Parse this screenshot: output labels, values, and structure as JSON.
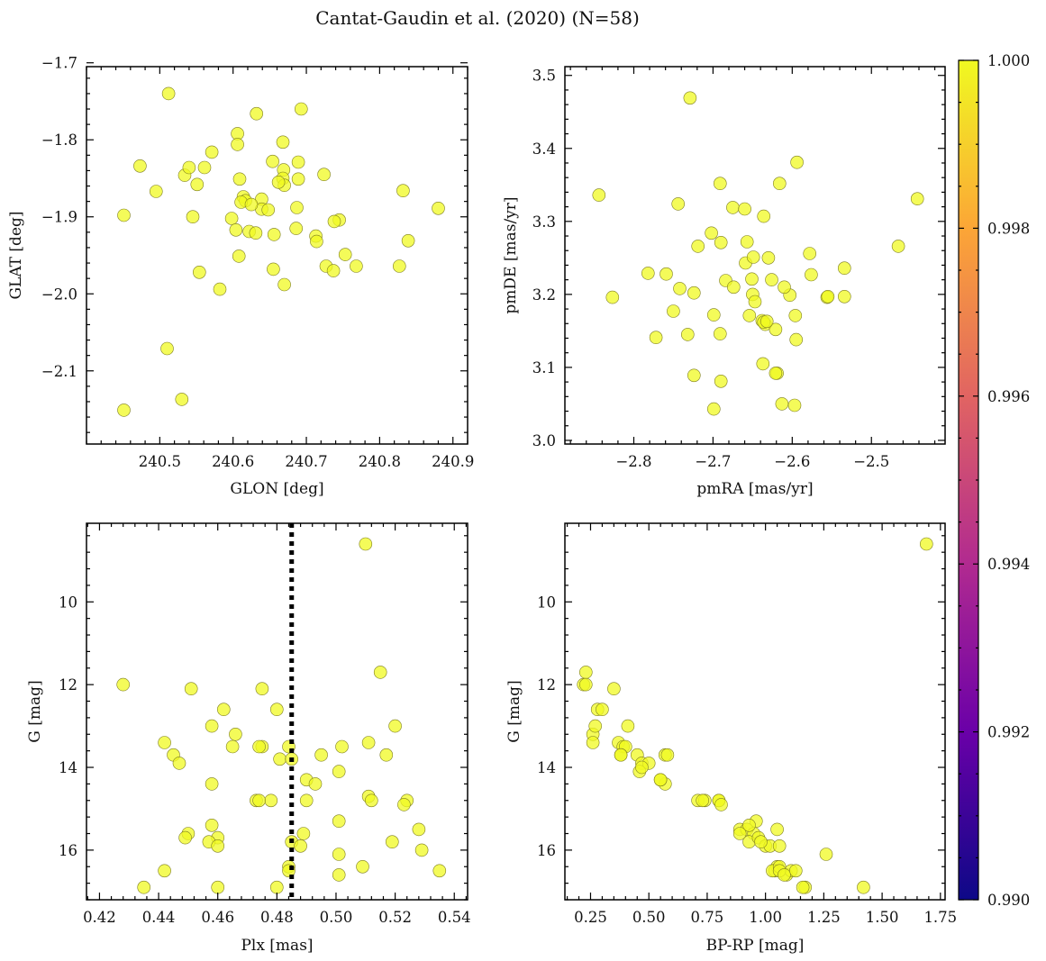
{
  "chart_data": {
    "title": "Cantat-Gaudin et al. (2020) (N=58)",
    "colorbar": {
      "min": 0.99,
      "max": 1.0,
      "tick_labels": [
        "1.000",
        "0.998",
        "0.996",
        "0.994",
        "0.992",
        "0.990"
      ],
      "tick_values": [
        1.0,
        0.998,
        0.996,
        0.994,
        0.992,
        0.99
      ],
      "colormap": "plasma",
      "colors": [
        "#0d0887",
        "#6a00a8",
        "#b12a90",
        "#e16462",
        "#fca636",
        "#f0f921"
      ]
    },
    "marker_color": "#f0f921",
    "panels": [
      {
        "type": "scatter",
        "xlabel": "GLON [deg]",
        "ylabel": "GLAT [deg]",
        "xlim": [
          240.4,
          240.92
        ],
        "ylim": [
          -2.195,
          -1.705
        ],
        "y_inverted": false,
        "xticks": [
          240.5,
          240.6,
          240.7,
          240.8,
          240.9
        ],
        "xtick_labels": [
          "240.5",
          "240.6",
          "240.7",
          "240.8",
          "240.9"
        ],
        "yticks": [
          -1.7,
          -1.8,
          -1.9,
          -2.0,
          -2.1
        ],
        "ytick_labels": [
          "−1.7",
          "−1.8",
          "−1.9",
          "−2.0",
          "−2.1"
        ],
        "x": [
          240.512,
          240.693,
          240.632,
          240.606,
          240.606,
          240.668,
          240.473,
          240.571,
          240.654,
          240.689,
          240.669,
          240.534,
          240.54,
          240.561,
          240.724,
          240.609,
          240.668,
          240.689,
          240.67,
          240.495,
          240.551,
          240.832,
          240.614,
          240.639,
          240.617,
          240.687,
          240.451,
          240.639,
          240.545,
          240.598,
          240.745,
          240.738,
          240.604,
          240.622,
          240.631,
          240.648,
          240.713,
          240.686,
          240.714,
          240.839,
          240.608,
          240.753,
          240.727,
          240.768,
          240.827,
          240.655,
          240.737,
          240.554,
          240.582,
          240.67,
          240.51,
          240.451,
          240.53,
          240.662,
          240.656,
          240.611,
          240.88,
          240.625
        ],
        "y": [
          -1.74,
          -1.76,
          -1.766,
          -1.792,
          -1.806,
          -1.803,
          -1.834,
          -1.816,
          -1.828,
          -1.829,
          -1.839,
          -1.846,
          -1.836,
          -1.836,
          -1.845,
          -1.851,
          -1.85,
          -1.851,
          -1.859,
          -1.867,
          -1.858,
          -1.866,
          -1.874,
          -1.877,
          -1.879,
          -1.888,
          -1.898,
          -1.89,
          -1.9,
          -1.902,
          -1.904,
          -1.906,
          -1.917,
          -1.919,
          -1.921,
          -1.891,
          -1.925,
          -1.915,
          -1.932,
          -1.931,
          -1.951,
          -1.949,
          -1.964,
          -1.964,
          -1.964,
          -1.968,
          -1.97,
          -1.972,
          -1.994,
          -1.988,
          -2.071,
          -2.151,
          -2.137,
          -1.855,
          -1.923,
          -1.881,
          -1.889,
          -1.884
        ]
      },
      {
        "type": "scatter",
        "xlabel": "pmRA [mas/yr]",
        "ylabel": "pmDE [mas/yr]",
        "xlim": [
          -2.887,
          -2.407
        ],
        "ylim": [
          2.995,
          3.512
        ],
        "y_inverted": false,
        "xticks": [
          -2.8,
          -2.7,
          -2.6,
          -2.5
        ],
        "xtick_labels": [
          "−2.8",
          "−2.7",
          "−2.6",
          "−2.5"
        ],
        "yticks": [
          3.0,
          3.1,
          3.2,
          3.3,
          3.4,
          3.5
        ],
        "ytick_labels": [
          "3.0",
          "3.1",
          "3.2",
          "3.3",
          "3.4",
          "3.5"
        ],
        "x": [
          -2.729,
          -2.594,
          -2.616,
          -2.442,
          -2.844,
          -2.744,
          -2.691,
          -2.675,
          -2.66,
          -2.636,
          -2.702,
          -2.657,
          -2.466,
          -2.719,
          -2.578,
          -2.63,
          -2.659,
          -2.782,
          -2.759,
          -2.576,
          -2.534,
          -2.684,
          -2.651,
          -2.674,
          -2.626,
          -2.742,
          -2.724,
          -2.65,
          -2.603,
          -2.827,
          -2.647,
          -2.556,
          -2.555,
          -2.534,
          -2.75,
          -2.638,
          -2.699,
          -2.634,
          -2.636,
          -2.621,
          -2.654,
          -2.596,
          -2.691,
          -2.732,
          -2.772,
          -2.595,
          -2.637,
          -2.619,
          -2.724,
          -2.621,
          -2.69,
          -2.613,
          -2.597,
          -2.699,
          -2.632,
          -2.69,
          -2.649,
          -2.61
        ],
        "y": [
          3.469,
          3.381,
          3.352,
          3.331,
          3.336,
          3.324,
          3.352,
          3.319,
          3.317,
          3.307,
          3.284,
          3.272,
          3.266,
          3.266,
          3.256,
          3.25,
          3.243,
          3.229,
          3.228,
          3.227,
          3.236,
          3.219,
          3.221,
          3.21,
          3.22,
          3.208,
          3.202,
          3.2,
          3.199,
          3.196,
          3.19,
          3.196,
          3.197,
          3.197,
          3.177,
          3.164,
          3.172,
          3.159,
          3.162,
          3.152,
          3.171,
          3.171,
          3.146,
          3.145,
          3.141,
          3.138,
          3.105,
          3.092,
          3.089,
          3.092,
          3.081,
          3.05,
          3.048,
          3.043,
          3.163,
          3.271,
          3.251,
          3.21
        ]
      },
      {
        "type": "scatter",
        "xlabel": "Plx [mas]",
        "ylabel": "G [mag]",
        "xlim": [
          0.4156,
          0.5445
        ],
        "ylim": [
          17.2,
          8.1
        ],
        "y_inverted": true,
        "vline": {
          "x": 0.485,
          "style": "dotted",
          "color": "#000000"
        },
        "xticks": [
          0.42,
          0.44,
          0.46,
          0.48,
          0.5,
          0.52,
          0.54
        ],
        "xtick_labels": [
          "0.42",
          "0.44",
          "0.46",
          "0.48",
          "0.50",
          "0.52",
          "0.54"
        ],
        "yticks": [
          10,
          12,
          14,
          16
        ],
        "ytick_labels": [
          "10",
          "12",
          "14",
          "16"
        ],
        "x": [
          0.51,
          0.515,
          0.428,
          0.451,
          0.475,
          0.462,
          0.52,
          0.48,
          0.442,
          0.511,
          0.466,
          0.458,
          0.502,
          0.484,
          0.475,
          0.517,
          0.445,
          0.495,
          0.49,
          0.481,
          0.447,
          0.458,
          0.501,
          0.493,
          0.511,
          0.49,
          0.485,
          0.512,
          0.473,
          0.478,
          0.524,
          0.523,
          0.501,
          0.528,
          0.458,
          0.45,
          0.449,
          0.46,
          0.457,
          0.46,
          0.519,
          0.485,
          0.488,
          0.501,
          0.529,
          0.484,
          0.509,
          0.442,
          0.535,
          0.501,
          0.48,
          0.435,
          0.46,
          0.474,
          0.465,
          0.474,
          0.484,
          0.489
        ],
        "y": [
          8.6,
          11.7,
          12.0,
          12.1,
          12.1,
          12.6,
          13.0,
          12.6,
          13.4,
          13.4,
          13.2,
          13.0,
          13.5,
          13.5,
          13.5,
          13.7,
          13.7,
          13.7,
          14.3,
          13.8,
          13.9,
          14.4,
          14.1,
          14.4,
          14.7,
          14.8,
          13.8,
          14.8,
          14.8,
          14.8,
          14.8,
          14.9,
          15.3,
          15.5,
          15.4,
          15.6,
          15.7,
          15.7,
          15.8,
          15.9,
          15.8,
          15.8,
          15.9,
          16.1,
          16.0,
          16.4,
          16.4,
          16.5,
          16.5,
          16.6,
          16.9,
          16.9,
          16.9,
          13.5,
          13.5,
          14.8,
          16.5,
          15.6
        ]
      },
      {
        "type": "scatter",
        "xlabel": "BP-RP [mag]",
        "ylabel": "G [mag]",
        "xlim": [
          0.14,
          1.77
        ],
        "ylim": [
          17.2,
          8.1
        ],
        "y_inverted": true,
        "xticks": [
          0.25,
          0.5,
          0.75,
          1.0,
          1.25,
          1.5,
          1.75
        ],
        "xtick_labels": [
          "0.25",
          "0.50",
          "0.75",
          "1.00",
          "1.25",
          "1.50",
          "1.75"
        ],
        "yticks": [
          10,
          12,
          14,
          16
        ],
        "ytick_labels": [
          "10",
          "12",
          "14",
          "16"
        ],
        "x": [
          1.69,
          0.23,
          0.22,
          0.23,
          0.35,
          0.28,
          0.3,
          0.26,
          0.26,
          0.27,
          0.37,
          0.39,
          0.4,
          0.41,
          0.38,
          0.45,
          0.47,
          0.5,
          0.57,
          0.57,
          0.46,
          0.55,
          0.58,
          0.71,
          0.74,
          0.73,
          0.8,
          0.8,
          0.81,
          0.89,
          0.92,
          0.95,
          0.96,
          0.93,
          0.97,
          1.0,
          1.02,
          0.98,
          1.05,
          1.06,
          1.05,
          1.04,
          1.03,
          1.06,
          1.09,
          1.11,
          1.13,
          1.26,
          1.17,
          1.42,
          1.06,
          1.08,
          1.16,
          0.47,
          0.55,
          0.38,
          0.93,
          0.89
        ],
        "y": [
          8.6,
          11.7,
          12.0,
          12.0,
          12.1,
          12.6,
          12.6,
          13.2,
          13.4,
          13.0,
          13.4,
          13.5,
          13.5,
          13.0,
          13.7,
          13.7,
          13.9,
          13.9,
          14.4,
          13.7,
          14.1,
          14.3,
          13.7,
          14.8,
          14.8,
          14.8,
          14.8,
          14.8,
          14.9,
          15.5,
          15.5,
          15.6,
          15.3,
          15.8,
          15.7,
          15.9,
          15.9,
          15.8,
          15.5,
          15.9,
          16.4,
          16.5,
          16.5,
          16.4,
          16.6,
          16.5,
          16.5,
          16.1,
          16.9,
          16.9,
          16.5,
          16.6,
          16.9,
          14.0,
          14.3,
          13.7,
          15.4,
          15.6
        ]
      }
    ]
  }
}
